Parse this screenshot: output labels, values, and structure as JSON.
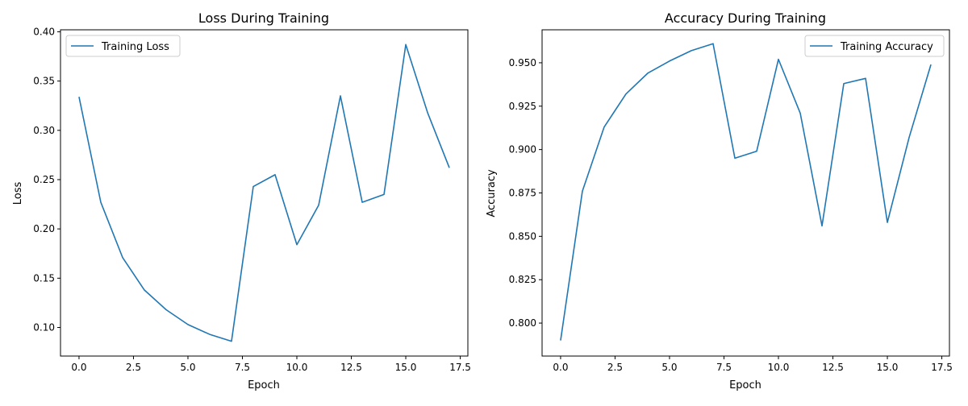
{
  "chart_data": [
    {
      "type": "line",
      "title": "Loss During Training",
      "xlabel": "Epoch",
      "ylabel": "Loss",
      "xlim": [
        -0.85,
        17.85
      ],
      "ylim": [
        0.071,
        0.402
      ],
      "xticks": [
        0.0,
        2.5,
        5.0,
        7.5,
        10.0,
        12.5,
        15.0,
        17.5
      ],
      "xtick_labels": [
        "0.0",
        "2.5",
        "5.0",
        "7.5",
        "10.0",
        "12.5",
        "15.0",
        "17.5"
      ],
      "yticks": [
        0.1,
        0.15,
        0.2,
        0.25,
        0.3,
        0.35,
        0.4
      ],
      "ytick_labels": [
        "0.10",
        "0.15",
        "0.20",
        "0.25",
        "0.30",
        "0.35",
        "0.40"
      ],
      "grid": false,
      "legend_position": "top-left",
      "series": [
        {
          "name": "Training Loss",
          "color": "#1f77b4",
          "x": [
            0,
            1,
            2,
            3,
            4,
            5,
            6,
            7,
            8,
            9,
            10,
            11,
            12,
            13,
            14,
            15,
            16,
            17
          ],
          "y": [
            0.334,
            0.227,
            0.171,
            0.138,
            0.118,
            0.103,
            0.093,
            0.086,
            0.243,
            0.255,
            0.184,
            0.224,
            0.335,
            0.227,
            0.235,
            0.387,
            0.318,
            0.262
          ]
        }
      ]
    },
    {
      "type": "line",
      "title": "Accuracy During Training",
      "xlabel": "Epoch",
      "ylabel": "Accuracy",
      "xlim": [
        -0.85,
        17.85
      ],
      "ylim": [
        0.781,
        0.969
      ],
      "xticks": [
        0.0,
        2.5,
        5.0,
        7.5,
        10.0,
        12.5,
        15.0,
        17.5
      ],
      "xtick_labels": [
        "0.0",
        "2.5",
        "5.0",
        "7.5",
        "10.0",
        "12.5",
        "15.0",
        "17.5"
      ],
      "yticks": [
        0.8,
        0.825,
        0.85,
        0.875,
        0.9,
        0.925,
        0.95
      ],
      "ytick_labels": [
        "0.800",
        "0.825",
        "0.850",
        "0.875",
        "0.900",
        "0.925",
        "0.950"
      ],
      "grid": false,
      "legend_position": "top-right",
      "series": [
        {
          "name": "Training Accuracy",
          "color": "#1f77b4",
          "x": [
            0,
            1,
            2,
            3,
            4,
            5,
            6,
            7,
            8,
            9,
            10,
            11,
            12,
            13,
            14,
            15,
            16,
            17
          ],
          "y": [
            0.79,
            0.876,
            0.913,
            0.932,
            0.944,
            0.951,
            0.957,
            0.961,
            0.895,
            0.899,
            0.952,
            0.921,
            0.856,
            0.938,
            0.941,
            0.858,
            0.907,
            0.949
          ]
        }
      ]
    }
  ]
}
